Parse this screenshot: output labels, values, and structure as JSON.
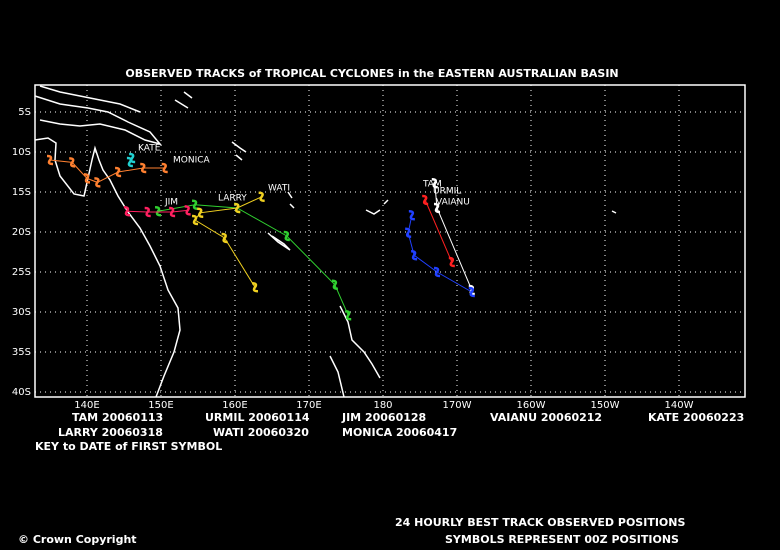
{
  "title": "OBSERVED TRACKS of TROPICAL CYCLONES in the EASTERN AUSTRALIAN BASIN",
  "lat_ticks": [
    {
      "value": -5,
      "label": "5S"
    },
    {
      "value": -10,
      "label": "10S"
    },
    {
      "value": -15,
      "label": "15S"
    },
    {
      "value": -20,
      "label": "20S"
    },
    {
      "value": -25,
      "label": "25S"
    },
    {
      "value": -30,
      "label": "30S"
    },
    {
      "value": -35,
      "label": "35S"
    },
    {
      "value": -40,
      "label": "40S"
    }
  ],
  "lon_ticks": [
    {
      "value": 140,
      "label": "140E"
    },
    {
      "value": 150,
      "label": "150E"
    },
    {
      "value": 160,
      "label": "160E"
    },
    {
      "value": 170,
      "label": "170E"
    },
    {
      "value": 180,
      "label": "180"
    },
    {
      "value": 190,
      "label": "170W"
    },
    {
      "value": 200,
      "label": "160W"
    },
    {
      "value": 210,
      "label": "150W"
    },
    {
      "value": 220,
      "label": "140W"
    }
  ],
  "storms": [
    {
      "name": "TAM",
      "key": "TAM 20060113",
      "color": "#ffffff",
      "track": [
        [
          187,
          -13.9
        ],
        [
          187.3,
          -17
        ],
        [
          192,
          -27.25
        ]
      ]
    },
    {
      "name": "URMIL",
      "key": "URMIL 20060114",
      "color": "#ff2020",
      "track": [
        [
          185.7,
          -16
        ],
        [
          189.3,
          -23.75
        ]
      ]
    },
    {
      "name": "JIM",
      "key": "JIM 20060128",
      "color": "#30d030",
      "track": [
        [
          149.6,
          -17.4
        ],
        [
          154.6,
          -16.6
        ],
        [
          160.3,
          -17
        ],
        [
          167,
          -20.5
        ],
        [
          173.5,
          -26.6
        ],
        [
          175.3,
          -30.4
        ]
      ]
    },
    {
      "name": "VAIANU",
      "key": "VAIANU 20060212",
      "color": "#2040ff",
      "track": [
        [
          183.9,
          -17.9
        ],
        [
          183.4,
          -20.1
        ],
        [
          184.2,
          -22.9
        ],
        [
          187.3,
          -25
        ],
        [
          192,
          -27.5
        ]
      ]
    },
    {
      "name": "KATE",
      "key": "KATE 20060223",
      "color": "#20d0d0",
      "track": [
        [
          146.1,
          -10.75
        ],
        [
          145.8,
          -11.25
        ]
      ]
    },
    {
      "name": "LARRY",
      "key": "LARRY 20060318",
      "color": "#ff2060",
      "track": [
        [
          145.4,
          -17.4
        ],
        [
          148.2,
          -17.5
        ],
        [
          151.5,
          -17.5
        ],
        [
          153.6,
          -17.3
        ]
      ]
    },
    {
      "name": "WATI",
      "key": "WATI 20060320",
      "color": "#f0d020",
      "track": [
        [
          163.6,
          -15.6
        ],
        [
          160.3,
          -17
        ],
        [
          155.3,
          -17.6
        ],
        [
          154.6,
          -18.5
        ],
        [
          158.6,
          -20.75
        ],
        [
          162.7,
          -26.9
        ]
      ]
    },
    {
      "name": "MONICA",
      "key": "MONICA 20060417",
      "color": "#ff8030",
      "track": [
        [
          135,
          -11
        ],
        [
          138,
          -11.3
        ],
        [
          140,
          -13.3
        ],
        [
          141.4,
          -13.8
        ],
        [
          144.2,
          -12.5
        ],
        [
          147.6,
          -12
        ],
        [
          150.5,
          -12
        ]
      ]
    }
  ],
  "key_note": "KEY to DATE of FIRST SYMBOL",
  "footer_line1": "24 HOURLY BEST TRACK OBSERVED POSITIONS",
  "footer_line2": "SYMBOLS REPRESENT 00Z POSITIONS",
  "copyright": "© Crown Copyright"
}
